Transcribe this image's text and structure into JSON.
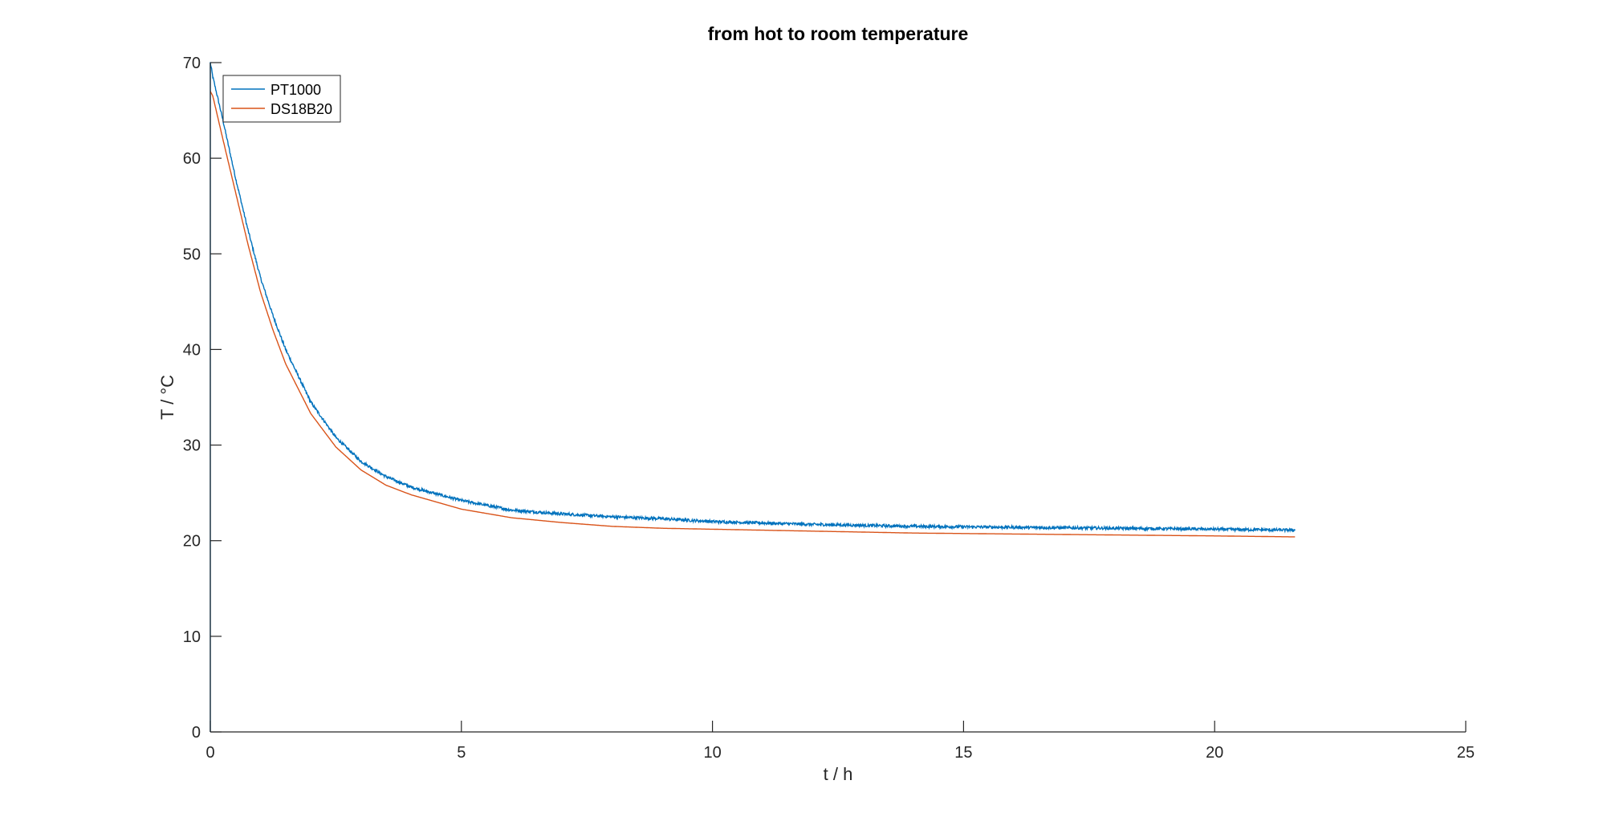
{
  "chart_data": {
    "type": "line",
    "title": "from hot to room temperature",
    "xlabel": "t / h",
    "ylabel": "T / °C",
    "xlim": [
      0,
      25
    ],
    "ylim": [
      0,
      70
    ],
    "xticks": [
      0,
      5,
      10,
      15,
      20,
      25
    ],
    "yticks": [
      0,
      10,
      20,
      30,
      40,
      50,
      60,
      70
    ],
    "grid": false,
    "legend_position": "top-left",
    "series": [
      {
        "name": "PT1000",
        "color": "#0072BD",
        "noise": 0.15,
        "x": [
          0,
          0,
          0.05,
          0.25,
          0.5,
          0.75,
          1,
          1.25,
          1.5,
          2,
          2.5,
          3,
          3.5,
          4,
          5,
          6,
          7,
          8,
          9,
          10,
          12,
          14,
          16,
          18,
          20,
          21.6
        ],
        "y": [
          0,
          70,
          68.5,
          64,
          58,
          52.5,
          47.5,
          43.5,
          40,
          34.5,
          30.8,
          28.3,
          26.7,
          25.6,
          24.2,
          23.2,
          22.8,
          22.5,
          22.3,
          22.0,
          21.7,
          21.5,
          21.4,
          21.3,
          21.2,
          21.1
        ]
      },
      {
        "name": "DS18B20",
        "color": "#D95319",
        "noise": 0.0,
        "x": [
          0,
          0.05,
          0.25,
          0.5,
          0.75,
          1,
          1.25,
          1.5,
          2,
          2.5,
          3,
          3.5,
          4,
          5,
          6,
          7,
          8,
          9,
          10,
          12,
          14,
          16,
          18,
          20,
          21.6
        ],
        "y": [
          67,
          66.5,
          62,
          56.5,
          51,
          46,
          42,
          38.5,
          33.3,
          29.8,
          27.4,
          25.8,
          24.8,
          23.3,
          22.4,
          21.9,
          21.5,
          21.3,
          21.2,
          21.0,
          20.8,
          20.7,
          20.6,
          20.5,
          20.4
        ]
      }
    ]
  }
}
